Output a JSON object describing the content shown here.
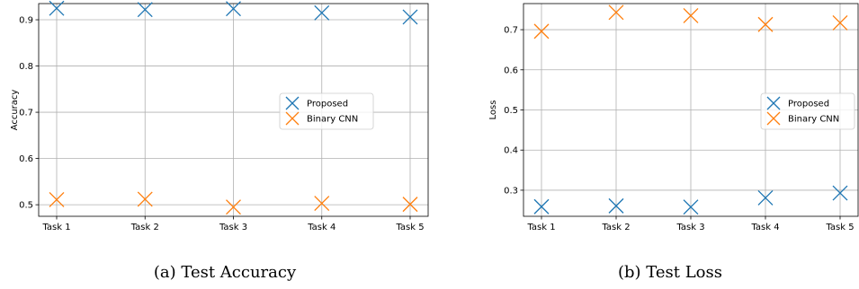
{
  "chart_data": [
    {
      "type": "scatter",
      "caption": "(a) Test Accuracy",
      "title": "",
      "xlabel": "",
      "ylabel": "Accuracy",
      "categories": [
        "Task 1",
        "Task 2",
        "Task 3",
        "Task 4",
        "Task 5"
      ],
      "ylim": [
        0.475,
        0.935
      ],
      "yticks": [
        "0.5",
        "0.6",
        "0.7",
        "0.8",
        "0.9"
      ],
      "grid": true,
      "legend": "center-right",
      "series": [
        {
          "name": "Proposed",
          "color": "#1f77b4",
          "marker": "x",
          "values": [
            0.925,
            0.922,
            0.924,
            0.915,
            0.906
          ]
        },
        {
          "name": "Binary CNN",
          "color": "#ff7f0e",
          "marker": "x",
          "values": [
            0.511,
            0.512,
            0.495,
            0.503,
            0.501
          ]
        }
      ]
    },
    {
      "type": "scatter",
      "caption": "(b) Test Loss",
      "title": "",
      "xlabel": "",
      "ylabel": "Loss",
      "categories": [
        "Task 1",
        "Task 2",
        "Task 3",
        "Task 4",
        "Task 5"
      ],
      "ylim": [
        0.235,
        0.765
      ],
      "yticks": [
        "0.3",
        "0.4",
        "0.5",
        "0.6",
        "0.7"
      ],
      "grid": true,
      "legend": "center-right",
      "series": [
        {
          "name": "Proposed",
          "color": "#1f77b4",
          "marker": "x",
          "values": [
            0.259,
            0.261,
            0.258,
            0.281,
            0.293
          ]
        },
        {
          "name": "Binary CNN",
          "color": "#ff7f0e",
          "marker": "x",
          "values": [
            0.696,
            0.743,
            0.735,
            0.713,
            0.717
          ]
        }
      ]
    }
  ]
}
